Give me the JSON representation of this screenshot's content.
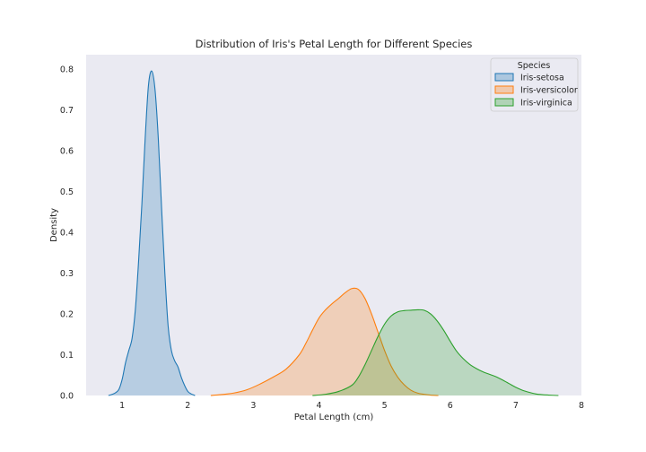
{
  "chart_data": {
    "type": "area",
    "title": "Distribution of Iris's Petal Length for Different Species",
    "xlabel": "Petal Length (cm)",
    "ylabel": "Density",
    "xlim": [
      0.45,
      8.0
    ],
    "ylim": [
      0,
      0.835
    ],
    "xticks": [
      1,
      2,
      3,
      4,
      5,
      6,
      7,
      8
    ],
    "yticks": [
      0.0,
      0.1,
      0.2,
      0.3,
      0.4,
      0.5,
      0.6,
      0.7,
      0.8
    ],
    "grid": false,
    "background": "#eaeaf2",
    "legend": {
      "title": "Species",
      "placement": "top-right"
    },
    "series": [
      {
        "name": "Iris-setosa",
        "color": "#1f77b4",
        "points": [
          [
            0.79,
            0.0
          ],
          [
            0.85,
            0.003
          ],
          [
            0.9,
            0.007
          ],
          [
            0.95,
            0.015
          ],
          [
            1.0,
            0.04
          ],
          [
            1.05,
            0.08
          ],
          [
            1.1,
            0.11
          ],
          [
            1.15,
            0.14
          ],
          [
            1.2,
            0.21
          ],
          [
            1.25,
            0.33
          ],
          [
            1.3,
            0.47
          ],
          [
            1.35,
            0.63
          ],
          [
            1.4,
            0.76
          ],
          [
            1.45,
            0.795
          ],
          [
            1.5,
            0.75
          ],
          [
            1.55,
            0.63
          ],
          [
            1.6,
            0.46
          ],
          [
            1.65,
            0.3
          ],
          [
            1.7,
            0.17
          ],
          [
            1.75,
            0.11
          ],
          [
            1.8,
            0.085
          ],
          [
            1.85,
            0.07
          ],
          [
            1.9,
            0.045
          ],
          [
            1.95,
            0.025
          ],
          [
            2.0,
            0.01
          ],
          [
            2.05,
            0.004
          ],
          [
            2.11,
            0.0
          ]
        ]
      },
      {
        "name": "Iris-versicolor",
        "color": "#ff7f0e",
        "points": [
          [
            2.35,
            0.0
          ],
          [
            2.5,
            0.002
          ],
          [
            2.7,
            0.006
          ],
          [
            2.9,
            0.014
          ],
          [
            3.1,
            0.028
          ],
          [
            3.3,
            0.045
          ],
          [
            3.5,
            0.065
          ],
          [
            3.7,
            0.1
          ],
          [
            3.8,
            0.128
          ],
          [
            3.9,
            0.16
          ],
          [
            4.0,
            0.19
          ],
          [
            4.1,
            0.21
          ],
          [
            4.2,
            0.225
          ],
          [
            4.3,
            0.238
          ],
          [
            4.4,
            0.252
          ],
          [
            4.5,
            0.262
          ],
          [
            4.6,
            0.26
          ],
          [
            4.7,
            0.238
          ],
          [
            4.8,
            0.2
          ],
          [
            4.9,
            0.155
          ],
          [
            5.0,
            0.11
          ],
          [
            5.1,
            0.072
          ],
          [
            5.2,
            0.045
          ],
          [
            5.3,
            0.026
          ],
          [
            5.4,
            0.013
          ],
          [
            5.5,
            0.006
          ],
          [
            5.6,
            0.003
          ],
          [
            5.7,
            0.001
          ],
          [
            5.82,
            0.0
          ]
        ]
      },
      {
        "name": "Iris-virginica",
        "color": "#2ca02c",
        "points": [
          [
            3.9,
            0.0
          ],
          [
            4.1,
            0.003
          ],
          [
            4.3,
            0.01
          ],
          [
            4.5,
            0.025
          ],
          [
            4.6,
            0.045
          ],
          [
            4.7,
            0.075
          ],
          [
            4.8,
            0.11
          ],
          [
            4.9,
            0.145
          ],
          [
            5.0,
            0.175
          ],
          [
            5.1,
            0.195
          ],
          [
            5.2,
            0.205
          ],
          [
            5.3,
            0.208
          ],
          [
            5.4,
            0.209
          ],
          [
            5.5,
            0.21
          ],
          [
            5.6,
            0.209
          ],
          [
            5.7,
            0.2
          ],
          [
            5.8,
            0.183
          ],
          [
            5.9,
            0.16
          ],
          [
            6.0,
            0.133
          ],
          [
            6.1,
            0.108
          ],
          [
            6.2,
            0.09
          ],
          [
            6.3,
            0.076
          ],
          [
            6.4,
            0.066
          ],
          [
            6.5,
            0.058
          ],
          [
            6.6,
            0.052
          ],
          [
            6.7,
            0.046
          ],
          [
            6.8,
            0.038
          ],
          [
            6.9,
            0.029
          ],
          [
            7.0,
            0.02
          ],
          [
            7.1,
            0.013
          ],
          [
            7.2,
            0.008
          ],
          [
            7.3,
            0.004
          ],
          [
            7.4,
            0.002
          ],
          [
            7.5,
            0.001
          ],
          [
            7.65,
            0.0
          ]
        ]
      }
    ]
  }
}
